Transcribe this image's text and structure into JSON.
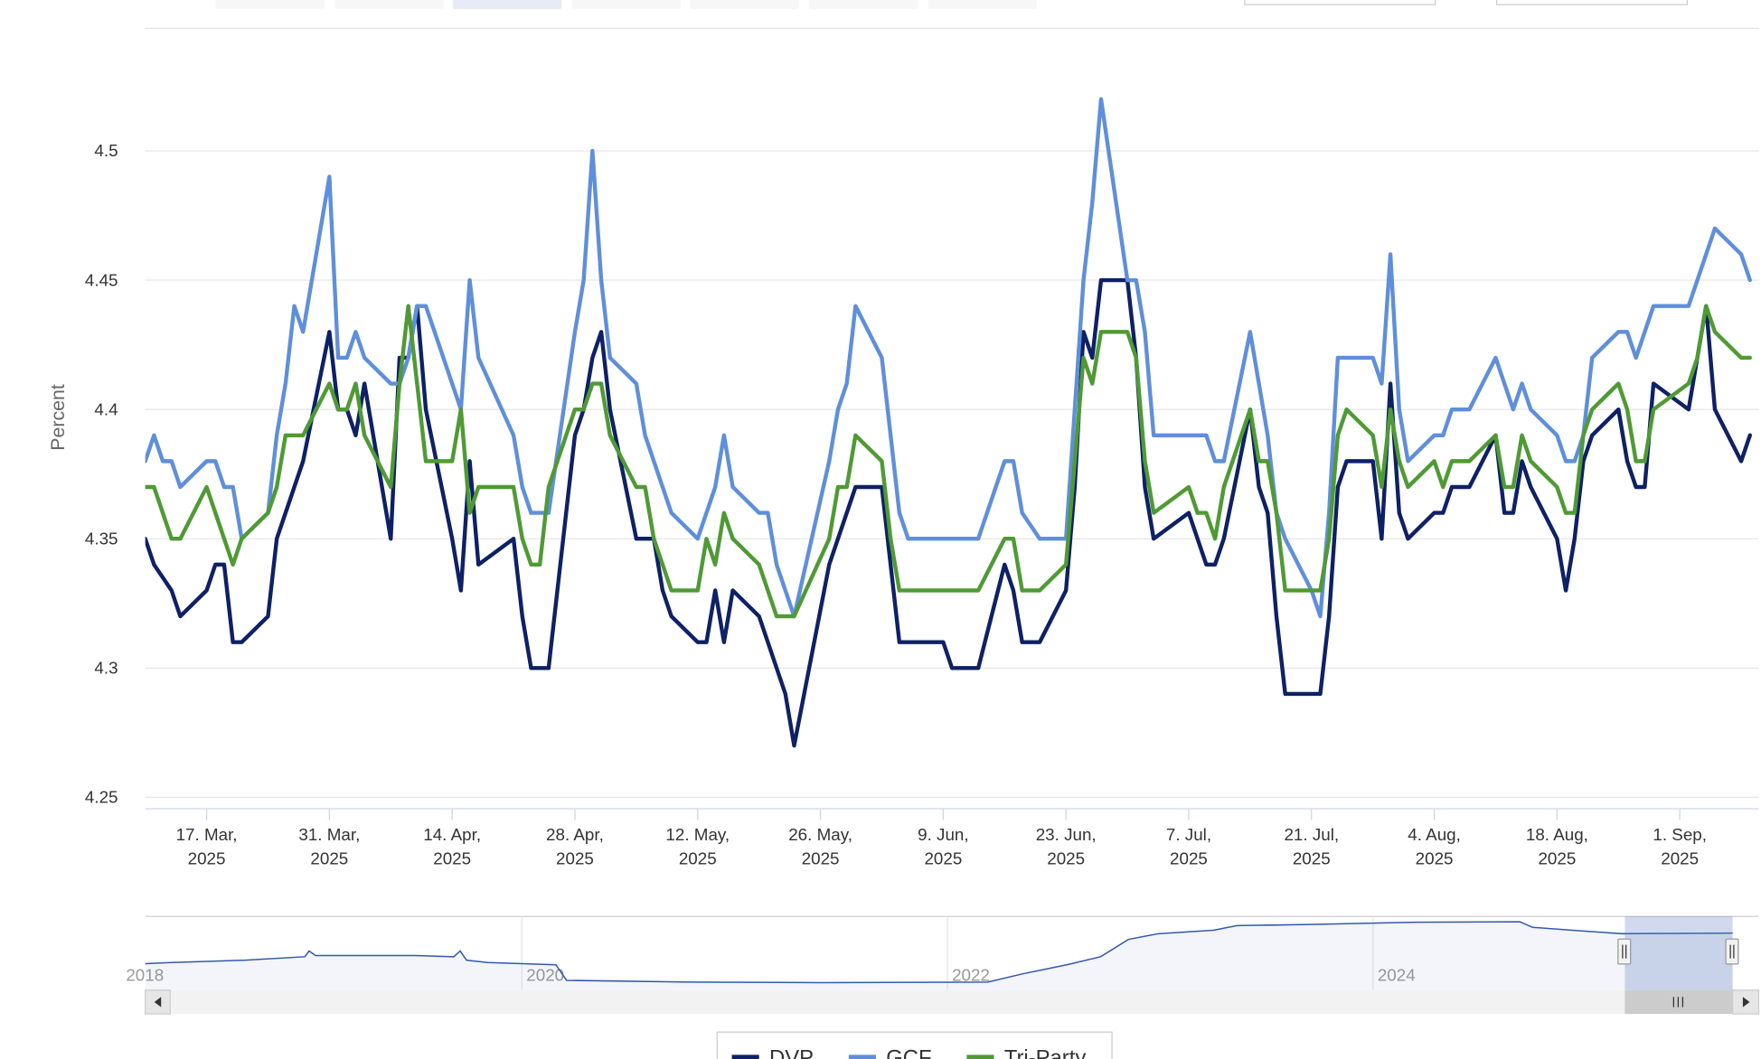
{
  "chart_data": {
    "type": "line",
    "y_axis_label": "Percent",
    "x": [
      "2025-03-10",
      "2025-03-11",
      "2025-03-12",
      "2025-03-13",
      "2025-03-14",
      "2025-03-17",
      "2025-03-18",
      "2025-03-19",
      "2025-03-20",
      "2025-03-21",
      "2025-03-24",
      "2025-03-25",
      "2025-03-26",
      "2025-03-27",
      "2025-03-28",
      "2025-03-31",
      "2025-04-01",
      "2025-04-02",
      "2025-04-03",
      "2025-04-04",
      "2025-04-07",
      "2025-04-08",
      "2025-04-09",
      "2025-04-10",
      "2025-04-11",
      "2025-04-14",
      "2025-04-15",
      "2025-04-16",
      "2025-04-17",
      "2025-04-21",
      "2025-04-22",
      "2025-04-23",
      "2025-04-24",
      "2025-04-25",
      "2025-04-28",
      "2025-04-29",
      "2025-04-30",
      "2025-05-01",
      "2025-05-02",
      "2025-05-05",
      "2025-05-06",
      "2025-05-07",
      "2025-05-08",
      "2025-05-09",
      "2025-05-12",
      "2025-05-13",
      "2025-05-14",
      "2025-05-15",
      "2025-05-16",
      "2025-05-19",
      "2025-05-20",
      "2025-05-21",
      "2025-05-22",
      "2025-05-23",
      "2025-05-27",
      "2025-05-28",
      "2025-05-29",
      "2025-05-30",
      "2025-06-02",
      "2025-06-03",
      "2025-06-04",
      "2025-06-05",
      "2025-06-06",
      "2025-06-09",
      "2025-06-10",
      "2025-06-11",
      "2025-06-12",
      "2025-06-13",
      "2025-06-16",
      "2025-06-17",
      "2025-06-18",
      "2025-06-20",
      "2025-06-23",
      "2025-06-24",
      "2025-06-25",
      "2025-06-26",
      "2025-06-27",
      "2025-06-30",
      "2025-07-01",
      "2025-07-02",
      "2025-07-03",
      "2025-07-07",
      "2025-07-08",
      "2025-07-09",
      "2025-07-10",
      "2025-07-11",
      "2025-07-14",
      "2025-07-15",
      "2025-07-16",
      "2025-07-17",
      "2025-07-18",
      "2025-07-21",
      "2025-07-22",
      "2025-07-23",
      "2025-07-24",
      "2025-07-25",
      "2025-07-28",
      "2025-07-29",
      "2025-07-30",
      "2025-07-31",
      "2025-08-01",
      "2025-08-04",
      "2025-08-05",
      "2025-08-06",
      "2025-08-07",
      "2025-08-08",
      "2025-08-11",
      "2025-08-12",
      "2025-08-13",
      "2025-08-14",
      "2025-08-15",
      "2025-08-18",
      "2025-08-19",
      "2025-08-20",
      "2025-08-21",
      "2025-08-22",
      "2025-08-25",
      "2025-08-26",
      "2025-08-27",
      "2025-08-28",
      "2025-08-29",
      "2025-09-02",
      "2025-09-03",
      "2025-09-04",
      "2025-09-05",
      "2025-09-08",
      "2025-09-09"
    ],
    "series": [
      {
        "name": "DVP",
        "color": "#0e2166",
        "values": [
          4.35,
          4.34,
          4.335,
          4.33,
          4.32,
          4.33,
          4.34,
          4.34,
          4.31,
          4.31,
          4.32,
          4.35,
          4.36,
          4.37,
          4.38,
          4.43,
          4.4,
          4.4,
          4.39,
          4.41,
          4.35,
          4.42,
          4.42,
          4.44,
          4.4,
          4.35,
          4.33,
          4.38,
          4.34,
          4.35,
          4.32,
          4.3,
          4.3,
          4.3,
          4.39,
          4.4,
          4.42,
          4.43,
          4.4,
          4.35,
          4.35,
          4.35,
          4.33,
          4.32,
          4.31,
          4.31,
          4.33,
          4.31,
          4.33,
          4.32,
          4.31,
          4.3,
          4.29,
          4.27,
          4.34,
          4.35,
          4.36,
          4.37,
          4.37,
          4.34,
          4.31,
          4.31,
          4.31,
          4.31,
          4.3,
          4.3,
          4.3,
          4.3,
          4.34,
          4.33,
          4.31,
          4.31,
          4.33,
          4.37,
          4.43,
          4.42,
          4.45,
          4.45,
          4.42,
          4.37,
          4.35,
          4.36,
          4.35,
          4.34,
          4.34,
          4.35,
          4.4,
          4.37,
          4.36,
          4.32,
          4.29,
          4.29,
          4.29,
          4.32,
          4.37,
          4.38,
          4.38,
          4.35,
          4.41,
          4.36,
          4.35,
          4.36,
          4.36,
          4.37,
          4.37,
          4.37,
          4.39,
          4.36,
          4.36,
          4.38,
          4.37,
          4.35,
          4.33,
          4.35,
          4.38,
          4.39,
          4.4,
          4.38,
          4.37,
          4.37,
          4.41,
          4.4,
          4.42,
          4.44,
          4.4,
          4.38,
          4.39
        ]
      },
      {
        "name": "GCF",
        "color": "#5f8fdb",
        "values": [
          4.38,
          4.39,
          4.38,
          4.38,
          4.37,
          4.38,
          4.38,
          4.37,
          4.37,
          4.35,
          4.36,
          4.39,
          4.41,
          4.44,
          4.43,
          4.49,
          4.42,
          4.42,
          4.43,
          4.42,
          4.41,
          4.41,
          4.42,
          4.44,
          4.44,
          4.41,
          4.4,
          4.45,
          4.42,
          4.39,
          4.37,
          4.36,
          4.36,
          4.36,
          4.43,
          4.45,
          4.5,
          4.45,
          4.42,
          4.41,
          4.39,
          4.38,
          4.37,
          4.36,
          4.35,
          4.36,
          4.37,
          4.39,
          4.37,
          4.36,
          4.36,
          4.34,
          4.33,
          4.32,
          4.38,
          4.4,
          4.41,
          4.44,
          4.42,
          4.39,
          4.36,
          4.35,
          4.35,
          4.35,
          4.35,
          4.35,
          4.35,
          4.35,
          4.38,
          4.38,
          4.36,
          4.35,
          4.35,
          4.4,
          4.45,
          4.48,
          4.52,
          4.45,
          4.45,
          4.43,
          4.39,
          4.39,
          4.39,
          4.39,
          4.38,
          4.38,
          4.43,
          4.41,
          4.39,
          4.36,
          4.35,
          4.33,
          4.32,
          4.36,
          4.42,
          4.42,
          4.42,
          4.41,
          4.46,
          4.4,
          4.38,
          4.39,
          4.39,
          4.4,
          4.4,
          4.4,
          4.42,
          4.41,
          4.4,
          4.41,
          4.4,
          4.39,
          4.38,
          4.38,
          4.39,
          4.42,
          4.43,
          4.43,
          4.42,
          4.43,
          4.44,
          4.44,
          4.45,
          4.46,
          4.47,
          4.46,
          4.45
        ]
      },
      {
        "name": "Tri-Party",
        "color": "#4f9a34",
        "values": [
          4.37,
          4.37,
          4.36,
          4.35,
          4.35,
          4.37,
          4.36,
          4.35,
          4.34,
          4.35,
          4.36,
          4.37,
          4.39,
          4.39,
          4.39,
          4.41,
          4.4,
          4.4,
          4.41,
          4.39,
          4.37,
          4.41,
          4.44,
          4.41,
          4.38,
          4.38,
          4.4,
          4.36,
          4.37,
          4.37,
          4.35,
          4.34,
          4.34,
          4.37,
          4.4,
          4.4,
          4.41,
          4.41,
          4.39,
          4.37,
          4.37,
          4.35,
          4.34,
          4.33,
          4.33,
          4.35,
          4.34,
          4.36,
          4.35,
          4.34,
          4.33,
          4.32,
          4.32,
          4.32,
          4.35,
          4.37,
          4.37,
          4.39,
          4.38,
          4.35,
          4.33,
          4.33,
          4.33,
          4.33,
          4.33,
          4.33,
          4.33,
          4.33,
          4.35,
          4.35,
          4.33,
          4.33,
          4.34,
          4.38,
          4.42,
          4.41,
          4.43,
          4.43,
          4.42,
          4.38,
          4.36,
          4.37,
          4.36,
          4.36,
          4.35,
          4.37,
          4.4,
          4.38,
          4.38,
          4.36,
          4.33,
          4.33,
          4.33,
          4.35,
          4.39,
          4.4,
          4.39,
          4.37,
          4.4,
          4.38,
          4.37,
          4.38,
          4.37,
          4.38,
          4.38,
          4.38,
          4.39,
          4.37,
          4.37,
          4.39,
          4.38,
          4.37,
          4.36,
          4.36,
          4.39,
          4.4,
          4.41,
          4.4,
          4.38,
          4.38,
          4.4,
          4.41,
          4.42,
          4.44,
          4.43,
          4.42,
          4.42
        ]
      }
    ],
    "xlim": [
      "2025-03-10",
      "2025-09-10"
    ],
    "xticks": [
      {
        "value": "2025-03-17",
        "label": "17. Mar, 2025"
      },
      {
        "value": "2025-03-31",
        "label": "31. Mar, 2025"
      },
      {
        "value": "2025-04-14",
        "label": "14. Apr, 2025"
      },
      {
        "value": "2025-04-28",
        "label": "28. Apr, 2025"
      },
      {
        "value": "2025-05-12",
        "label": "12. May, 2025"
      },
      {
        "value": "2025-05-26",
        "label": "26. May, 2025"
      },
      {
        "value": "2025-06-09",
        "label": "9. Jun, 2025"
      },
      {
        "value": "2025-06-23",
        "label": "23. Jun, 2025"
      },
      {
        "value": "2025-07-07",
        "label": "7. Jul, 2025"
      },
      {
        "value": "2025-07-21",
        "label": "21. Jul, 2025"
      },
      {
        "value": "2025-08-04",
        "label": "4. Aug, 2025"
      },
      {
        "value": "2025-08-18",
        "label": "18. Aug, 2025"
      },
      {
        "value": "2025-09-01",
        "label": "1. Sep, 2025"
      }
    ],
    "ylim": [
      4.25,
      4.55
    ],
    "yticks": [
      4.25,
      4.3,
      4.35,
      4.4,
      4.45,
      4.5
    ],
    "grid": true,
    "legend": "bottom",
    "navigator": {
      "color": "#3358b0",
      "x": [
        2018.23,
        2018.35,
        2018.7,
        2018.98,
        2019.0,
        2019.03,
        2019.5,
        2019.68,
        2019.71,
        2019.74,
        2019.84,
        2020.16,
        2020.21,
        2020.8,
        2021.4,
        2022.19,
        2022.35,
        2022.56,
        2022.72,
        2022.85,
        2022.99,
        2023.25,
        2023.36,
        2023.7,
        2024.2,
        2024.69,
        2024.75,
        2025.01,
        2025.17,
        2025.69
      ],
      "values": [
        1.7,
        1.8,
        2.0,
        2.3,
        2.8,
        2.4,
        2.4,
        2.3,
        2.8,
        2.0,
        1.8,
        1.6,
        0.25,
        0.1,
        0.05,
        0.1,
        0.8,
        1.6,
        2.3,
        3.8,
        4.3,
        4.6,
        5.0,
        5.1,
        5.3,
        5.33,
        4.85,
        4.5,
        4.3,
        4.35
      ],
      "xlim": [
        2018.23,
        2025.69
      ],
      "ylim": [
        -0.6,
        5.8
      ],
      "xticks": [
        2018,
        2020,
        2022,
        2024
      ]
    }
  }
}
